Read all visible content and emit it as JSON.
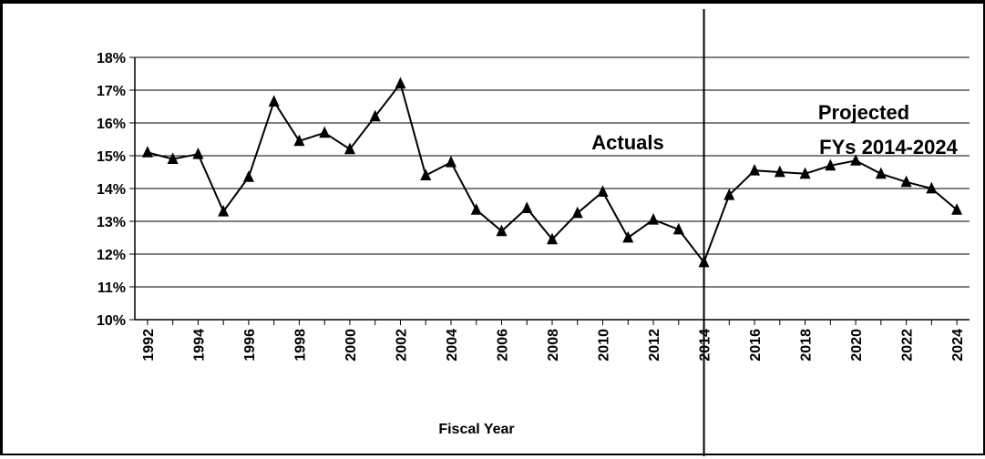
{
  "chart_data": {
    "type": "line",
    "title": "",
    "xlabel": "Fiscal Year",
    "ylabel": "",
    "ylim": [
      10,
      18
    ],
    "y_ticks": [
      "10%",
      "11%",
      "12%",
      "13%",
      "14%",
      "15%",
      "16%",
      "17%",
      "18%"
    ],
    "y_tick_values": [
      10,
      11,
      12,
      13,
      14,
      15,
      16,
      17,
      18
    ],
    "x_tick_labels": [
      "1992",
      "1994",
      "1996",
      "1998",
      "2000",
      "2002",
      "2004",
      "2006",
      "2008",
      "2010",
      "2012",
      "2014",
      "2016",
      "2018",
      "2020",
      "2022",
      "2024"
    ],
    "grid": "horizontal",
    "marker": "triangle",
    "series": [
      {
        "x": [
          1992,
          1993,
          1994,
          1995,
          1996,
          1997,
          1998,
          1999,
          2000,
          2001,
          2002,
          2003,
          2004,
          2005,
          2006,
          2007,
          2008,
          2009,
          2010,
          2011,
          2012,
          2013,
          2014,
          2015,
          2016,
          2017,
          2018,
          2019,
          2020,
          2021,
          2022,
          2023,
          2024
        ],
        "values": [
          15.1,
          14.9,
          15.05,
          13.3,
          14.35,
          16.65,
          15.45,
          15.7,
          15.2,
          16.2,
          17.2,
          14.4,
          14.8,
          13.35,
          12.7,
          13.4,
          12.45,
          13.25,
          13.9,
          12.5,
          13.05,
          12.75,
          11.75,
          13.8,
          14.55,
          14.5,
          14.45,
          14.7,
          14.85,
          14.45,
          14.2,
          14.0,
          13.35
        ]
      }
    ],
    "divider_x": 2014,
    "annotations": [
      {
        "text": "Actuals"
      },
      {
        "text": "Projected"
      },
      {
        "text": "FYs 2014-2024"
      }
    ]
  }
}
